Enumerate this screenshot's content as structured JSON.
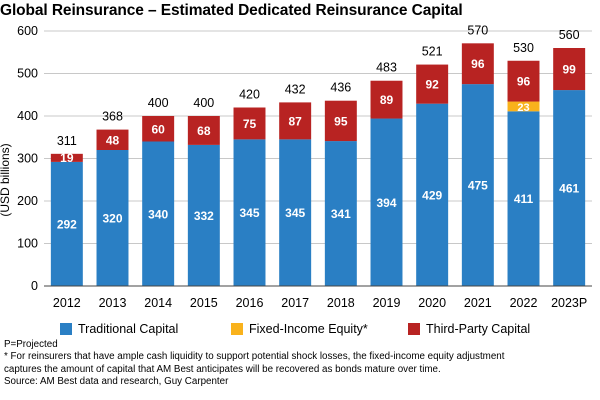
{
  "colors": {
    "traditional": "#2A7FC4",
    "fixed_income": "#F9B21C",
    "third_party": "#B82322",
    "gridline": "#C8C8C8"
  },
  "chart_data": {
    "type": "bar",
    "stacked": true,
    "title": "Global Reinsurance – Estimated Dedicated Reinsurance Capital",
    "ylabel": "(USD billions)",
    "ylim": [
      0,
      600
    ],
    "yticks": [
      "0",
      "100",
      "200",
      "300",
      "400",
      "500",
      "600"
    ],
    "grid": true,
    "legend_position": "bottom",
    "categories": [
      "2012",
      "2013",
      "2014",
      "2015",
      "2016",
      "2017",
      "2018",
      "2019",
      "2020",
      "2021",
      "2022",
      "2023P"
    ],
    "series": [
      {
        "name": "Traditional Capital",
        "color_key": "traditional",
        "values": [
          292,
          320,
          340,
          332,
          345,
          345,
          341,
          394,
          429,
          475,
          411,
          461
        ]
      },
      {
        "name": "Fixed-Income Equity*",
        "color_key": "fixed_income",
        "values": [
          0,
          0,
          0,
          0,
          0,
          0,
          0,
          0,
          0,
          0,
          23,
          0
        ]
      },
      {
        "name": "Third-Party Capital",
        "color_key": "third_party",
        "values": [
          19,
          48,
          60,
          68,
          75,
          87,
          95,
          89,
          92,
          96,
          96,
          99
        ]
      }
    ],
    "totals": [
      311,
      368,
      400,
      400,
      420,
      432,
      436,
      483,
      521,
      570,
      530,
      560
    ],
    "segment_labels": [
      [
        "292",
        "320",
        "340",
        "332",
        "345",
        "345",
        "341",
        "394",
        "429",
        "475",
        "411",
        "461"
      ],
      [
        "",
        "",
        "",
        "",
        "",
        "",
        "",
        "",
        "",
        "",
        "23",
        ""
      ],
      [
        "19",
        "48",
        "60",
        "68",
        "75",
        "87",
        "95",
        "89",
        "92",
        "96",
        "96",
        "99"
      ]
    ]
  },
  "legend": {
    "traditional": "Traditional Capital",
    "fixed_income": "Fixed-Income Equity*",
    "third_party": "Third-Party Capital"
  },
  "notes": {
    "projected": "P=Projected",
    "footnote_line1": "* For reinsurers that have ample cash liquidity to support potential shock losses, the fixed-income equity adjustment",
    "footnote_line2": "captures the amount of capital that AM Best anticipates will be recovered as bonds mature over time.",
    "source": "Source: AM Best data and research, Guy Carpenter"
  }
}
